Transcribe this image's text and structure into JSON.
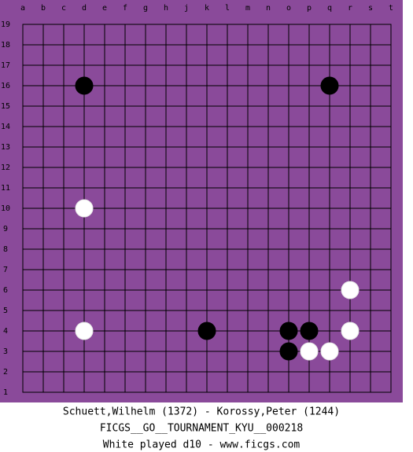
{
  "board": {
    "columns": [
      "a",
      "b",
      "c",
      "d",
      "e",
      "f",
      "g",
      "h",
      "j",
      "k",
      "l",
      "m",
      "n",
      "o",
      "p",
      "q",
      "r",
      "s",
      "t"
    ],
    "rows": [
      19,
      18,
      17,
      16,
      15,
      14,
      13,
      12,
      11,
      10,
      9,
      8,
      7,
      6,
      5,
      4,
      3,
      2,
      1
    ],
    "stones": [
      {
        "color": "black",
        "col": "d",
        "row": 16
      },
      {
        "color": "black",
        "col": "q",
        "row": 16
      },
      {
        "color": "white",
        "col": "d",
        "row": 10
      },
      {
        "color": "white",
        "col": "r",
        "row": 6
      },
      {
        "color": "white",
        "col": "d",
        "row": 4
      },
      {
        "color": "black",
        "col": "k",
        "row": 4
      },
      {
        "color": "black",
        "col": "o",
        "row": 4
      },
      {
        "color": "black",
        "col": "p",
        "row": 4
      },
      {
        "color": "white",
        "col": "r",
        "row": 4
      },
      {
        "color": "black",
        "col": "o",
        "row": 3
      },
      {
        "color": "white",
        "col": "p",
        "row": 3
      },
      {
        "color": "white",
        "col": "q",
        "row": 3
      }
    ]
  },
  "footer": {
    "players": "Schuett,Wilhelm (1372) - Korossy,Peter (1244)",
    "game": "FICGS__GO__TOURNAMENT_KYU__000218",
    "status": "White played d10 - www.ficgs.com"
  }
}
